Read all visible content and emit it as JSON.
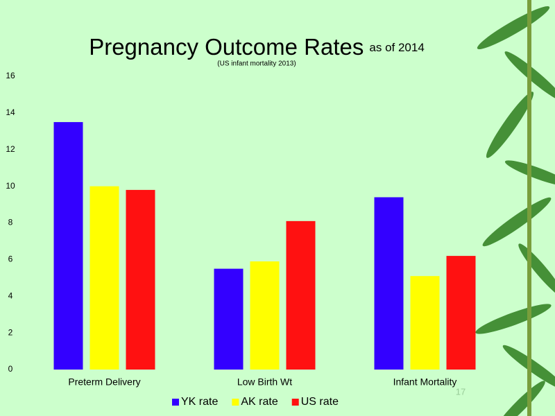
{
  "chart_data": {
    "type": "bar",
    "title": "Pregnancy Outcome Rates",
    "title_suffix": "as of 2014",
    "subtitle": "(US infant mortality 2013)",
    "categories": [
      "Preterm Delivery",
      "Low Birth Wt",
      "Infant Mortality"
    ],
    "series": [
      {
        "name": "YK rate",
        "color": "#3300ff",
        "values": [
          13.5,
          5.5,
          9.4
        ]
      },
      {
        "name": "AK rate",
        "color": "#ffff00",
        "values": [
          10,
          5.9,
          5.1
        ]
      },
      {
        "name": "US rate",
        "color": "#ff1111",
        "values": [
          9.8,
          8.1,
          6.2
        ]
      }
    ],
    "ylim": [
      0,
      16
    ],
    "yticks": [
      0,
      2,
      4,
      6,
      8,
      10,
      12,
      14,
      16
    ],
    "grid": false,
    "legend": "bottom",
    "slide_number": "17"
  }
}
